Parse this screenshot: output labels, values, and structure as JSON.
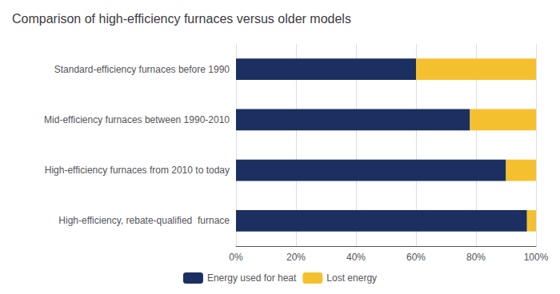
{
  "chart_data": {
    "type": "bar",
    "orientation": "horizontal",
    "stacked": true,
    "title": "Comparison of high-efficiency furnaces versus older models",
    "categories": [
      "Standard-efficiency furnaces before 1990",
      "Mid-efficiency furnaces between 1990-2010",
      "High-efficiency furnaces from 2010 to today",
      "High-efficiency, rebate-qualified  furnace"
    ],
    "series": [
      {
        "name": "Energy used for heat",
        "color": "#1b3060",
        "values": [
          60,
          78,
          90,
          97
        ]
      },
      {
        "name": "Lost energy",
        "color": "#f5c030",
        "values": [
          40,
          22,
          10,
          3
        ]
      }
    ],
    "xlim": [
      0,
      100
    ],
    "xticks": [
      {
        "value": 0,
        "label": "0%"
      },
      {
        "value": 20,
        "label": "20%"
      },
      {
        "value": 40,
        "label": "40%"
      },
      {
        "value": 60,
        "label": "60%"
      },
      {
        "value": 80,
        "label": "80%"
      },
      {
        "value": 100,
        "label": "100%"
      }
    ],
    "grid": true,
    "legend": "bottom"
  }
}
